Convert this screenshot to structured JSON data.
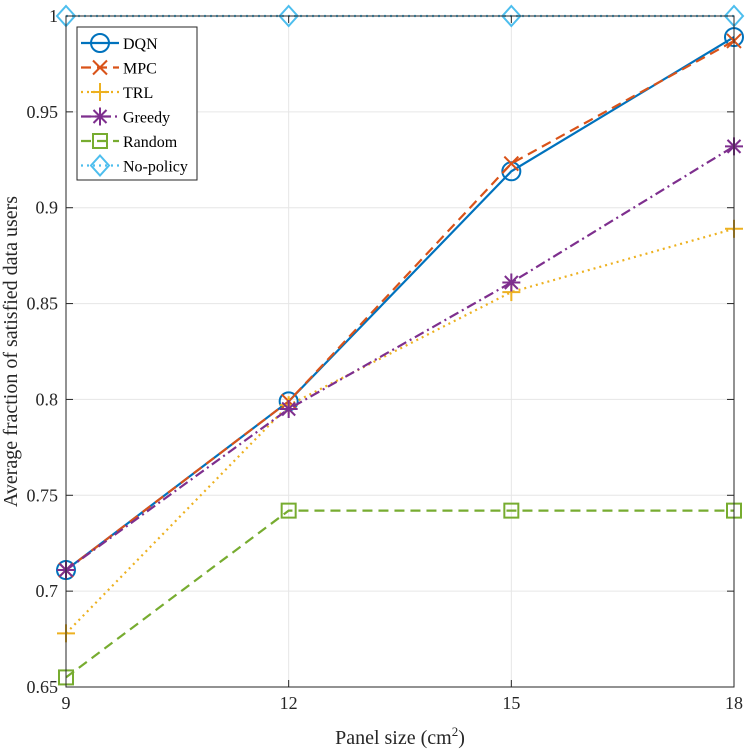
{
  "chart_data": {
    "type": "line",
    "title": "",
    "xlabel": "Panel size (cm",
    "xlabel_superscript": "2",
    "xlabel_suffix": ")",
    "ylabel": "Average fraction of satisfied data users",
    "x": [
      9,
      12,
      15,
      18
    ],
    "xlim": [
      9,
      18
    ],
    "ylim": [
      0.65,
      1.0
    ],
    "x_ticks": [
      "9",
      "12",
      "15",
      "18"
    ],
    "y_ticks": [
      "0.65",
      "0.7",
      "0.75",
      "0.8",
      "0.85",
      "0.9",
      "0.95",
      "1"
    ],
    "grid": true,
    "legend_position": "top-left",
    "series": [
      {
        "name": "DQN",
        "values": [
          0.711,
          0.799,
          0.919,
          0.989
        ],
        "color": "#0072BD",
        "dash": "solid",
        "marker": "circle"
      },
      {
        "name": "MPC",
        "values": [
          0.711,
          0.799,
          0.923,
          0.987
        ],
        "color": "#D95319",
        "dash": "dash",
        "marker": "x"
      },
      {
        "name": "TRL",
        "values": [
          0.678,
          0.797,
          0.856,
          0.889
        ],
        "color": "#EDB120",
        "dash": "dot",
        "marker": "plus"
      },
      {
        "name": "Greedy",
        "values": [
          0.711,
          0.795,
          0.861,
          0.932
        ],
        "color": "#7E2F8E",
        "dash": "dashdot",
        "marker": "asterisk"
      },
      {
        "name": "Random",
        "values": [
          0.655,
          0.742,
          0.742,
          0.742
        ],
        "color": "#77AC30",
        "dash": "dash",
        "marker": "square"
      },
      {
        "name": "No-policy",
        "values": [
          1.0,
          1.0,
          1.0,
          1.0
        ],
        "color": "#4DBEEE",
        "dash": "dot",
        "marker": "diamond"
      }
    ]
  }
}
